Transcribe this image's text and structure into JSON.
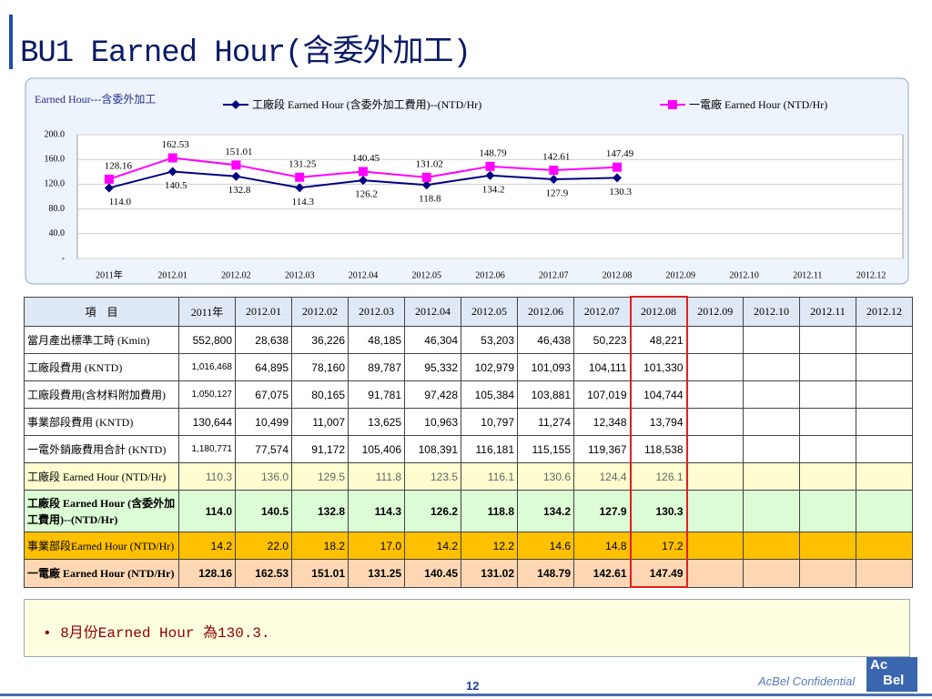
{
  "title": "BU1 Earned Hour(含委外加工)",
  "chart_data": {
    "type": "line",
    "title": "Earned Hour---含委外加工",
    "categories": [
      "2011年",
      "2012.01",
      "2012.02",
      "2012.03",
      "2012.04",
      "2012.05",
      "2012.06",
      "2012.07",
      "2012.08",
      "2012.09",
      "2012.10",
      "2012.11",
      "2012.12"
    ],
    "series": [
      {
        "name": "工廠段 Earned Hour (含委外加工費用)--(NTD/Hr)",
        "color": "#000080",
        "marker": "diamond",
        "values": [
          114.0,
          140.5,
          132.8,
          114.3,
          126.2,
          118.8,
          134.2,
          127.9,
          130.3,
          null,
          null,
          null,
          null
        ],
        "value_labels": [
          "114.0",
          "140.5",
          "132.8",
          "114.3",
          "126.2",
          "118.8",
          "134.2",
          "127.9",
          "130.3",
          null,
          null,
          null,
          null
        ]
      },
      {
        "name": "一電廠 Earned Hour (NTD/Hr)",
        "color": "#ff00ff",
        "marker": "square",
        "values": [
          128.16,
          162.53,
          151.01,
          131.25,
          140.45,
          131.02,
          148.79,
          142.61,
          147.49,
          null,
          null,
          null,
          null
        ]
      }
    ],
    "ylim": [
      0,
      200
    ],
    "yticks": [
      {
        "value": 0,
        "label": "-"
      },
      {
        "value": 40,
        "label": "40.0"
      },
      {
        "value": 80,
        "label": "80.0"
      },
      {
        "value": 120,
        "label": "120.0"
      },
      {
        "value": 160,
        "label": "160.0"
      },
      {
        "value": 200,
        "label": "200.0"
      }
    ],
    "grid": true
  },
  "table": {
    "header_label": "項　目",
    "rows": [
      {
        "label": "當月產出標準工時 (Kmin)",
        "cells": [
          "552,800",
          "28,638",
          "36,226",
          "48,185",
          "46,304",
          "53,203",
          "46,438",
          "50,223",
          "48,221"
        ]
      },
      {
        "label": "工廠段費用 (KNTD)",
        "cells": [
          "1,016,468",
          "64,895",
          "78,160",
          "89,787",
          "95,332",
          "102,979",
          "101,093",
          "104,111",
          "101,330"
        ]
      },
      {
        "label": "工廠段費用(含材料附加費用)",
        "cells": [
          "1,050,127",
          "67,075",
          "80,165",
          "91,781",
          "97,428",
          "105,384",
          "103,881",
          "107,019",
          "104,744"
        ]
      },
      {
        "label": "事業部段費用 (KNTD)",
        "cells": [
          "130,644",
          "10,499",
          "11,007",
          "13,625",
          "10,963",
          "10,797",
          "11,274",
          "12,348",
          "13,794"
        ]
      },
      {
        "label": "一電外銷廠費用合計 (KNTD)",
        "cells": [
          "1,180,771",
          "77,574",
          "91,172",
          "105,406",
          "108,391",
          "116,181",
          "115,155",
          "119,367",
          "118,538"
        ]
      },
      {
        "label": "工廠段 Earned Hour (NTD/Hr)",
        "cells": [
          "110.3",
          "136.0",
          "129.5",
          "111.8",
          "123.5",
          "116.1",
          "130.6",
          "124.4",
          "126.1"
        ]
      },
      {
        "label": "工廠段 Earned Hour (含委外加工費用)--(NTD/Hr)",
        "cells": [
          "114.0",
          "140.5",
          "132.8",
          "114.3",
          "126.2",
          "118.8",
          "134.2",
          "127.9",
          "130.3"
        ]
      },
      {
        "label": "事業部段Earned Hour (NTD/Hr)",
        "cells": [
          "14.2",
          "22.0",
          "18.2",
          "17.0",
          "14.2",
          "12.2",
          "14.6",
          "14.8",
          "17.2"
        ]
      },
      {
        "label": "一電廠 Earned Hour (NTD/Hr)",
        "cells": [
          "128.16",
          "162.53",
          "151.01",
          "131.25",
          "140.45",
          "131.02",
          "148.79",
          "142.61",
          "147.49"
        ]
      }
    ]
  },
  "notes": [
    "8月份Earned Hour 為130.3."
  ],
  "footer": {
    "page": "12",
    "confidential": "AcBel Confidential",
    "logo": [
      "Ac",
      "Bel"
    ]
  }
}
